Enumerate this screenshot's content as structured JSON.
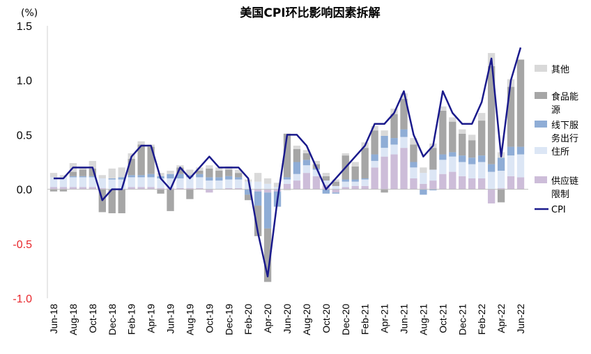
{
  "chart_data": {
    "type": "bar",
    "title": "美国CPI环比影响因素拆解",
    "unit_label": "(%)",
    "ylim": [
      -1.0,
      1.5
    ],
    "yticks": [
      "1.5",
      "1.0",
      "0.5",
      "0.0",
      "-0.5",
      "-1.0"
    ],
    "ytick_values": [
      1.5,
      1.0,
      0.5,
      0.0,
      -0.5,
      -1.0
    ],
    "negative_tick_color": "#e8262b",
    "positive_tick_color": "#000000",
    "grid": false,
    "legend_position": "right",
    "x_tick_labels": [
      "Jun-18",
      "Aug-18",
      "Oct-18",
      "Dec-18",
      "Feb-19",
      "Apr-19",
      "Jun-19",
      "Aug-19",
      "Oct-19",
      "Dec-19",
      "Feb-20",
      "Apr-20",
      "Jun-20",
      "Aug-20",
      "Oct-20",
      "Dec-20",
      "Feb-21",
      "Apr-21",
      "Jun-21",
      "Aug-21",
      "Oct-21",
      "Dec-21",
      "Feb-22",
      "Apr-22",
      "Jun-22"
    ],
    "categories": [
      "Jun-18",
      "Jul-18",
      "Aug-18",
      "Sep-18",
      "Oct-18",
      "Nov-18",
      "Dec-18",
      "Jan-19",
      "Feb-19",
      "Mar-19",
      "Apr-19",
      "May-19",
      "Jun-19",
      "Jul-19",
      "Aug-19",
      "Sep-19",
      "Oct-19",
      "Nov-19",
      "Dec-19",
      "Jan-20",
      "Feb-20",
      "Mar-20",
      "Apr-20",
      "May-20",
      "Jun-20",
      "Jul-20",
      "Aug-20",
      "Sep-20",
      "Oct-20",
      "Nov-20",
      "Dec-20",
      "Jan-21",
      "Feb-21",
      "Mar-21",
      "Apr-21",
      "May-21",
      "Jun-21",
      "Jul-21",
      "Aug-21",
      "Sep-21",
      "Oct-21",
      "Nov-21",
      "Dec-21",
      "Jan-22",
      "Feb-22",
      "Mar-22",
      "Apr-22",
      "May-22",
      "Jun-22"
    ],
    "series": [
      {
        "name": "供应链限制",
        "type": "bar",
        "color": "#cdbdd9",
        "values": [
          0.02,
          0.02,
          0.02,
          0.02,
          0.02,
          0.01,
          0.0,
          0.0,
          0.02,
          0.02,
          0.02,
          0.01,
          0.01,
          0.01,
          0.01,
          0.01,
          -0.03,
          0.0,
          0.01,
          0.01,
          0.0,
          -0.02,
          -0.03,
          -0.02,
          0.05,
          0.08,
          0.15,
          0.12,
          0.04,
          -0.03,
          0.02,
          0.03,
          0.03,
          0.2,
          0.3,
          0.32,
          0.38,
          0.1,
          0.05,
          0.08,
          0.14,
          0.16,
          0.12,
          0.1,
          0.1,
          -0.13,
          0.01,
          0.12,
          0.11
        ]
      },
      {
        "name": "住所",
        "type": "bar",
        "color": "#dce6f5",
        "values": [
          0.09,
          0.09,
          0.09,
          0.09,
          0.09,
          0.09,
          0.09,
          0.09,
          0.09,
          0.09,
          0.09,
          0.09,
          0.09,
          0.09,
          0.1,
          0.1,
          0.08,
          0.08,
          0.08,
          0.08,
          0.07,
          0.07,
          0.05,
          0.02,
          0.04,
          0.06,
          0.07,
          0.06,
          0.04,
          0.03,
          0.05,
          0.04,
          0.06,
          0.06,
          0.08,
          0.09,
          0.1,
          0.1,
          0.1,
          0.1,
          0.13,
          0.14,
          0.13,
          0.13,
          0.15,
          0.16,
          0.16,
          0.19,
          0.21
        ]
      },
      {
        "name": "线下服务出行",
        "type": "bar",
        "color": "#8fadd6",
        "values": [
          0.0,
          0.0,
          0.01,
          0.01,
          0.01,
          0.0,
          0.01,
          0.02,
          0.02,
          0.02,
          0.03,
          0.02,
          0.04,
          0.04,
          0.02,
          0.03,
          0.03,
          0.03,
          0.03,
          0.02,
          -0.05,
          -0.13,
          -0.33,
          -0.14,
          0.02,
          0.11,
          0.05,
          0.01,
          -0.04,
          -0.01,
          0.02,
          0.02,
          0.01,
          0.06,
          0.11,
          0.06,
          0.07,
          0.05,
          -0.05,
          -0.01,
          0.05,
          0.04,
          0.06,
          0.06,
          0.06,
          0.07,
          0.12,
          0.08,
          0.07
        ]
      },
      {
        "name": "食品能源",
        "type": "bar",
        "color": "#a6a6a6",
        "values": [
          -0.02,
          -0.02,
          0.04,
          0.06,
          0.07,
          -0.21,
          -0.22,
          -0.22,
          0.15,
          0.28,
          0.25,
          -0.04,
          -0.2,
          0.06,
          -0.09,
          0.03,
          0.08,
          0.06,
          0.06,
          0.04,
          -0.05,
          -0.28,
          -0.49,
          0.0,
          0.4,
          0.12,
          0.06,
          0.04,
          0.04,
          0.04,
          0.22,
          0.12,
          0.28,
          0.22,
          -0.03,
          0.22,
          0.28,
          0.16,
          0.0,
          0.2,
          0.4,
          0.28,
          0.2,
          0.16,
          0.32,
          0.9,
          -0.12,
          0.55,
          0.8
        ]
      },
      {
        "name": "其他",
        "type": "bar",
        "color": "#d9d9d9",
        "values": [
          0.04,
          0.02,
          0.08,
          0.02,
          0.07,
          0.03,
          0.09,
          0.09,
          0.05,
          0.03,
          0.02,
          0.03,
          0.03,
          0.02,
          0.05,
          0.03,
          0.03,
          0.03,
          0.03,
          0.03,
          0.02,
          0.08,
          0.05,
          0.04,
          -0.01,
          0.03,
          0.03,
          0.03,
          0.03,
          0.02,
          0.02,
          0.04,
          0.05,
          0.04,
          0.05,
          0.05,
          0.05,
          0.06,
          0.05,
          0.04,
          0.04,
          0.04,
          0.04,
          0.05,
          0.07,
          0.12,
          0.05,
          0.07,
          0.0
        ]
      },
      {
        "name": "CPI",
        "type": "line",
        "color": "#1a1a8c",
        "values": [
          0.1,
          0.1,
          0.2,
          0.2,
          0.2,
          -0.1,
          0.0,
          0.0,
          0.3,
          0.4,
          0.4,
          0.1,
          0.0,
          0.2,
          0.1,
          0.2,
          0.3,
          0.2,
          0.2,
          0.2,
          0.1,
          -0.4,
          -0.8,
          -0.1,
          0.5,
          0.5,
          0.4,
          0.2,
          0.0,
          0.1,
          0.2,
          0.3,
          0.4,
          0.6,
          0.6,
          0.7,
          0.9,
          0.5,
          0.3,
          0.4,
          0.9,
          0.7,
          0.6,
          0.6,
          0.8,
          1.2,
          0.3,
          1.0,
          1.3
        ]
      }
    ],
    "legend_order": [
      "其他",
      "食品能源",
      "线下服务出行",
      "住所",
      "供应链限制",
      "CPI"
    ],
    "legend": [
      {
        "name": "其他",
        "lines": [
          "其他"
        ],
        "color": "#d9d9d9",
        "kind": "box"
      },
      {
        "name": "食品能源",
        "lines": [
          "食品能",
          "源"
        ],
        "color": "#a6a6a6",
        "kind": "box"
      },
      {
        "name": "线下服务出行",
        "lines": [
          "线下服",
          "务出行"
        ],
        "color": "#8fadd6",
        "kind": "box"
      },
      {
        "name": "住所",
        "lines": [
          "住所"
        ],
        "color": "#dce6f5",
        "kind": "box"
      },
      {
        "name": "供应链限制",
        "lines": [
          "供应链",
          "限制"
        ],
        "color": "#cdbdd9",
        "kind": "box"
      },
      {
        "name": "CPI",
        "lines": [
          "CPI"
        ],
        "color": "#1a1a8c",
        "kind": "line"
      }
    ]
  }
}
